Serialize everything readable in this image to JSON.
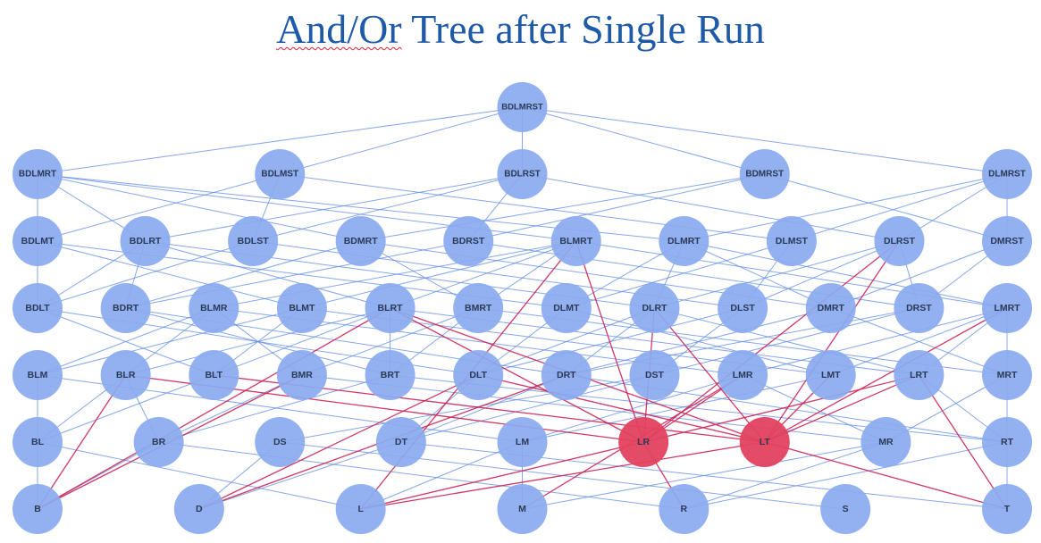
{
  "title": {
    "prefix": "And/Or",
    "rest": " Tree after Single Run"
  },
  "colors": {
    "node": "#8aaaf0",
    "highlight_node": "#e2415e",
    "edge": "#5d8ae4",
    "highlight_edge": "#cc2255",
    "label": "#2b3a55",
    "title": "#1f5aa8"
  },
  "tree": {
    "levels": [
      [
        "BDLMRST"
      ],
      [
        "BDLMRT",
        "BDLMST",
        "BDLRST",
        "BDMRST",
        "DLMRST"
      ],
      [
        "BDLMT",
        "BDLRT",
        "BDLST",
        "BDMRT",
        "BDRST",
        "BLMRT",
        "DLMRT",
        "DLMST",
        "DLRST",
        "DMRST"
      ],
      [
        "BDLT",
        "BDRT",
        "BLMR",
        "BLMT",
        "BLRT",
        "BMRT",
        "DLMT",
        "DLRT",
        "DLST",
        "DMRT",
        "DRST",
        "LMRT"
      ],
      [
        "BLM",
        "BLR",
        "BLT",
        "BMR",
        "BRT",
        "DLT",
        "DRT",
        "DST",
        "LMR",
        "LMT",
        "LRT",
        "MRT"
      ],
      [
        "BL",
        "BR",
        "DS",
        "DT",
        "LM",
        "LR",
        "LT",
        "MR",
        "RT"
      ],
      [
        "B",
        "D",
        "L",
        "M",
        "R",
        "S",
        "T"
      ]
    ],
    "highlighted_nodes": [
      "LR",
      "LT"
    ],
    "highlighted_edges": [
      [
        "LR",
        "L"
      ],
      [
        "LR",
        "R"
      ],
      [
        "LT",
        "L"
      ],
      [
        "LT",
        "T"
      ],
      [
        "LRT",
        "LR"
      ],
      [
        "LRT",
        "LT"
      ],
      [
        "LMT",
        "LT"
      ],
      [
        "LMR",
        "LR"
      ],
      [
        "DLRT",
        "LR"
      ],
      [
        "DLRT",
        "LT"
      ],
      [
        "BLRT",
        "LR"
      ],
      [
        "BLRT",
        "LT"
      ],
      [
        "BLR",
        "LR"
      ],
      [
        "BLT",
        "LT"
      ],
      [
        "DLT",
        "LT"
      ],
      [
        "BLMRT",
        "LR"
      ],
      [
        "DLRST",
        "LR"
      ],
      [
        "DLRST",
        "LT"
      ],
      [
        "LMRT",
        "LT"
      ],
      [
        "BLR",
        "B"
      ],
      [
        "DLT",
        "D"
      ],
      [
        "BLRT",
        "B"
      ],
      [
        "BMR",
        "B"
      ],
      [
        "DRT",
        "D"
      ],
      [
        "LRT",
        "T"
      ],
      [
        "LMR",
        "M"
      ],
      [
        "BLMRT",
        "L"
      ]
    ]
  }
}
